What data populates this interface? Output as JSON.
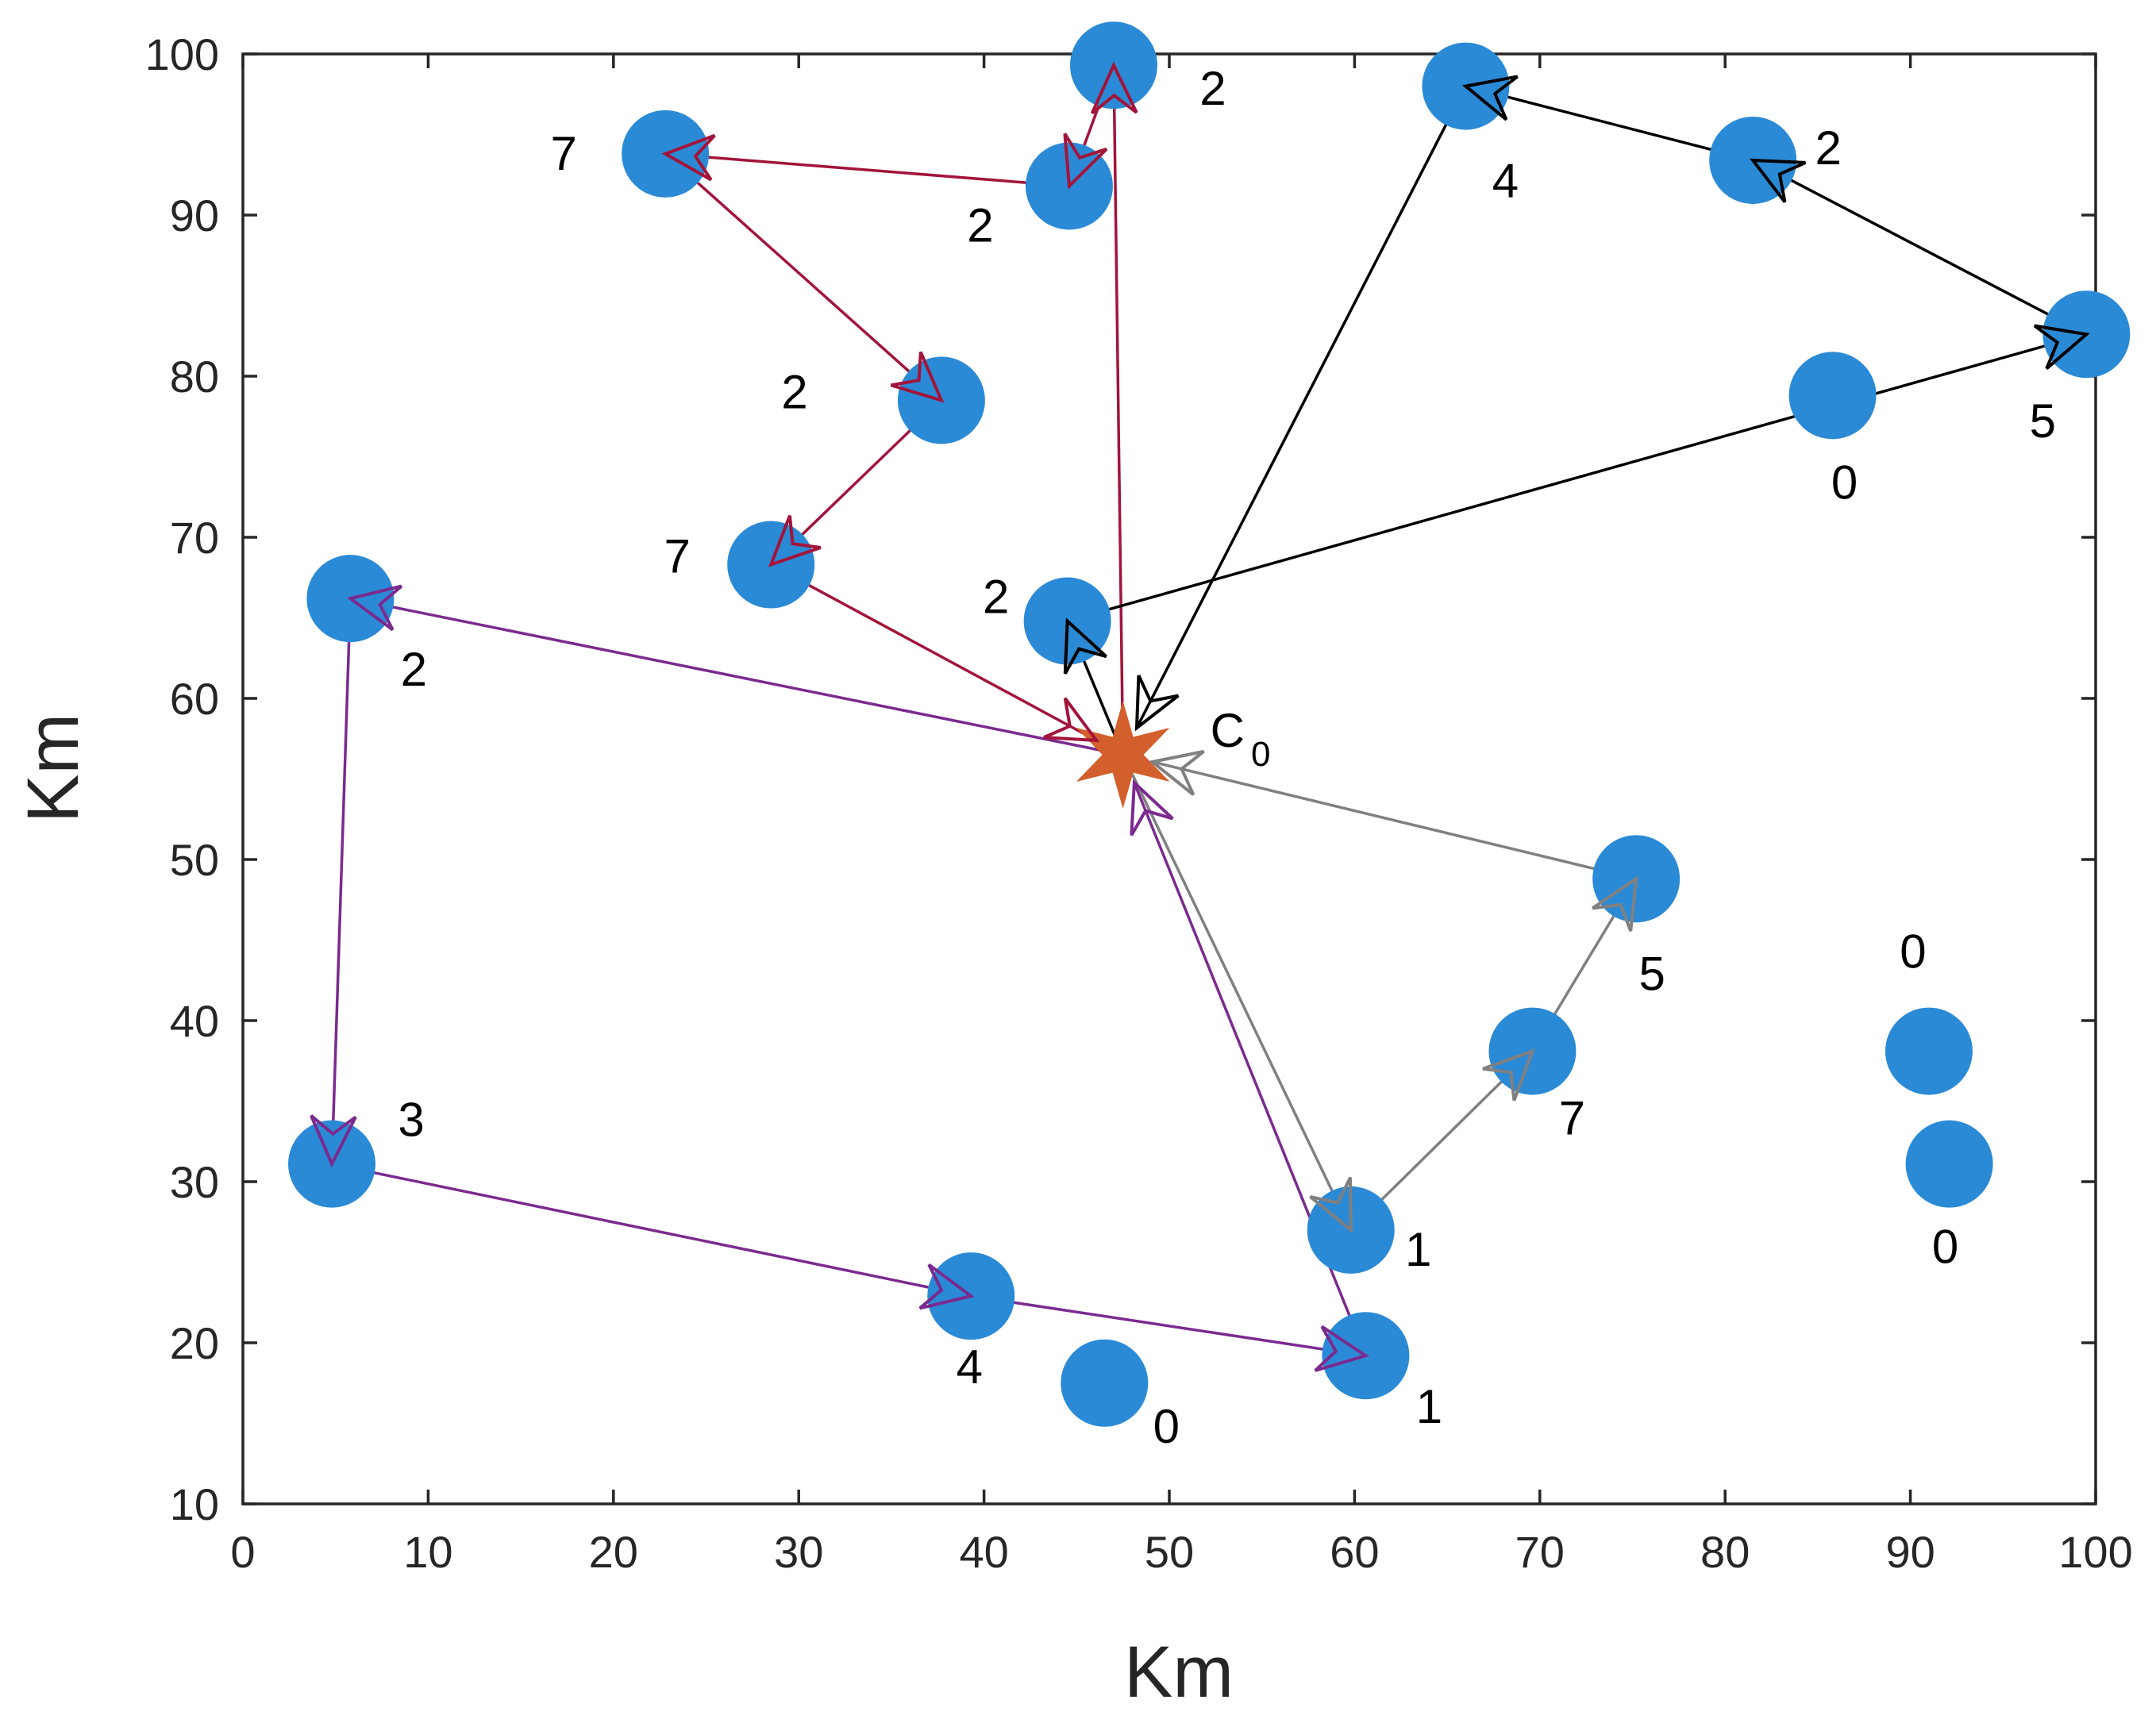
{
  "chart_data": {
    "type": "scatter",
    "title": "",
    "xlabel": "Km",
    "ylabel": "Km",
    "xlim": [
      0,
      100
    ],
    "ylim": [
      10,
      100
    ],
    "xticks": [
      0,
      10,
      20,
      30,
      40,
      50,
      60,
      70,
      80,
      90,
      100
    ],
    "yticks": [
      10,
      20,
      30,
      40,
      50,
      60,
      70,
      80,
      90,
      100
    ],
    "grid": false,
    "colors": {
      "node": "#2b8ad6",
      "depot": "#d35f2c",
      "route_red": "#a3143a",
      "route_black": "#000000",
      "route_purple": "#7b2a8f",
      "route_gray": "#808080",
      "axis": "#262626"
    },
    "depot": {
      "name": "C",
      "subscript": "0",
      "x": 47.5,
      "y": 56.5
    },
    "nodes": [
      {
        "id": "n1",
        "x": 47.0,
        "y": 99.3,
        "label": "2"
      },
      {
        "id": "n2",
        "x": 44.6,
        "y": 91.8,
        "label": "2"
      },
      {
        "id": "n3",
        "x": 22.8,
        "y": 93.8,
        "label": "7"
      },
      {
        "id": "n4",
        "x": 37.7,
        "y": 78.5,
        "label": "2"
      },
      {
        "id": "n5",
        "x": 28.5,
        "y": 68.3,
        "label": "7"
      },
      {
        "id": "n6",
        "x": 44.5,
        "y": 64.8,
        "label": "2"
      },
      {
        "id": "n7",
        "x": 66.0,
        "y": 98.0,
        "label": "4"
      },
      {
        "id": "n8",
        "x": 81.5,
        "y": 93.4,
        "label": "2"
      },
      {
        "id": "n9",
        "x": 99.5,
        "y": 82.6,
        "label": "5"
      },
      {
        "id": "n10",
        "x": 85.8,
        "y": 78.8,
        "label": "0"
      },
      {
        "id": "n11",
        "x": 5.8,
        "y": 66.2,
        "label": "2"
      },
      {
        "id": "n12",
        "x": 4.8,
        "y": 31.1,
        "label": "3"
      },
      {
        "id": "n13",
        "x": 39.3,
        "y": 22.9,
        "label": "4"
      },
      {
        "id": "n14",
        "x": 46.5,
        "y": 17.5,
        "label": "0"
      },
      {
        "id": "n15",
        "x": 60.6,
        "y": 19.2,
        "label": "1"
      },
      {
        "id": "n16",
        "x": 59.8,
        "y": 27.0,
        "label": "1"
      },
      {
        "id": "n17",
        "x": 69.6,
        "y": 38.1,
        "label": "7"
      },
      {
        "id": "n18",
        "x": 75.2,
        "y": 48.8,
        "label": "5"
      },
      {
        "id": "n19",
        "x": 91.0,
        "y": 38.1,
        "label": "0"
      },
      {
        "id": "n20",
        "x": 92.1,
        "y": 31.1,
        "label": "0"
      }
    ],
    "routes": [
      {
        "name": "red-route",
        "color": "#a3143a",
        "path": [
          [
            47.5,
            56.5
          ],
          [
            47.0,
            99.3
          ],
          [
            44.6,
            91.8
          ],
          [
            22.8,
            93.8
          ],
          [
            37.7,
            78.5
          ],
          [
            28.5,
            68.3
          ],
          [
            47.5,
            56.5
          ]
        ]
      },
      {
        "name": "black-route",
        "color": "#000000",
        "path": [
          [
            47.5,
            56.5
          ],
          [
            44.5,
            64.8
          ],
          [
            99.5,
            82.6
          ],
          [
            81.5,
            93.4
          ],
          [
            66.0,
            98.0
          ],
          [
            47.5,
            56.5
          ]
        ]
      },
      {
        "name": "purple-route",
        "color": "#7b2a8f",
        "path": [
          [
            47.5,
            56.5
          ],
          [
            5.8,
            66.2
          ],
          [
            4.8,
            31.1
          ],
          [
            39.3,
            22.9
          ],
          [
            60.6,
            19.2
          ],
          [
            47.5,
            56.5
          ]
        ]
      },
      {
        "name": "gray-route",
        "color": "#808080",
        "path": [
          [
            47.5,
            56.5
          ],
          [
            59.8,
            27.0
          ],
          [
            69.6,
            38.1
          ],
          [
            75.2,
            48.8
          ],
          [
            47.5,
            56.5
          ]
        ]
      }
    ]
  }
}
